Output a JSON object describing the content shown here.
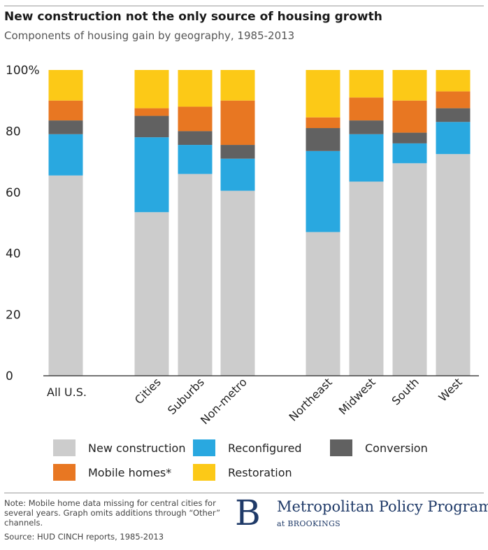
{
  "header": {
    "title": "New construction not the only source of housing growth",
    "subtitle": "Components of housing gain by geography, 1985-2013"
  },
  "chart_data": {
    "type": "bar",
    "stacked": true,
    "categories": [
      "All U.S.",
      "Cities",
      "Suburbs",
      "Non-metro",
      "Northeast",
      "Midwest",
      "South",
      "West"
    ],
    "series": [
      {
        "name": "New construction",
        "color": "#cccccc",
        "values": [
          65.5,
          53.5,
          66,
          60.5,
          47,
          63.5,
          69.5,
          72.5
        ]
      },
      {
        "name": "Reconfigured",
        "color": "#29a8e0",
        "values": [
          13.5,
          24.5,
          9.5,
          10.5,
          26.5,
          15.5,
          6.5,
          10.5
        ]
      },
      {
        "name": "Conversion",
        "color": "#616161",
        "values": [
          4.5,
          7,
          4.5,
          4.5,
          7.5,
          4.5,
          3.5,
          4.5
        ]
      },
      {
        "name": "Mobile homes*",
        "color": "#e87722",
        "values": [
          6.5,
          2.5,
          8,
          14.5,
          3.5,
          7.5,
          10.5,
          5.5
        ]
      },
      {
        "name": "Restoration",
        "color": "#fcc917",
        "values": [
          10,
          12.5,
          12,
          10,
          15.5,
          9,
          10,
          7
        ]
      }
    ],
    "yticks": [
      "0",
      "20",
      "40",
      "60",
      "80",
      "100%"
    ],
    "ylim": [
      0,
      100
    ],
    "xlabel": "",
    "ylabel": "",
    "grid": false,
    "legend_position": "bottom"
  },
  "legend": {
    "items": [
      {
        "label": "New construction",
        "color": "#cccccc"
      },
      {
        "label": "Reconfigured",
        "color": "#29a8e0"
      },
      {
        "label": "Conversion",
        "color": "#616161"
      },
      {
        "label": "Mobile homes*",
        "color": "#e87722"
      },
      {
        "label": "Restoration",
        "color": "#fcc917"
      }
    ]
  },
  "footer": {
    "note": "Note: Mobile home data missing for central cities for several years. Graph omits additions through “Other” channels.",
    "source": "Source: HUD CINCH reports, 1985-2013",
    "logo_letter": "B",
    "logo_title": "Metropolitan Policy Program",
    "logo_sub": "at BROOKINGS"
  }
}
